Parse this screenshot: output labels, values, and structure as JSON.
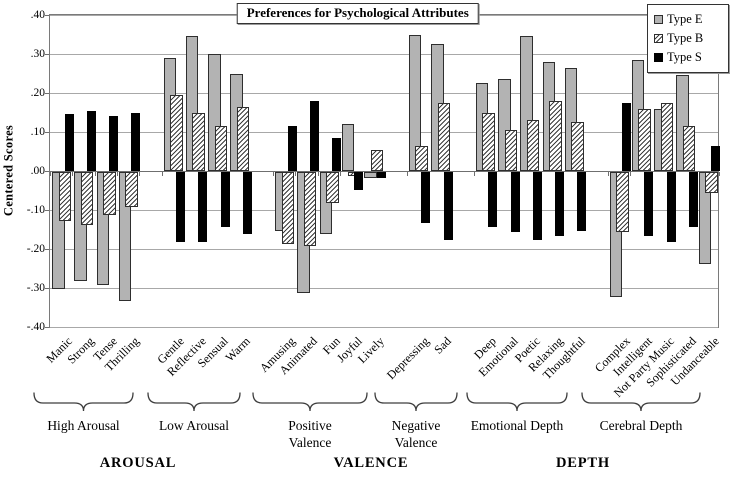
{
  "figure": {
    "background": "#ffffff",
    "colors": {
      "type_e_fill": "#b3b3b3",
      "type_b_pattern": "white with thin dark diagonal hatch",
      "type_s_fill": "#000000",
      "gridline": "#a8a8a8",
      "axis": "#6f6f6f",
      "text": "#000000"
    }
  },
  "chart_data": {
    "type": "bar",
    "title": "Preferences for Psychological Attributes",
    "xlabel": "",
    "ylabel": "Centered Scores",
    "ylim": [
      -0.4,
      0.4
    ],
    "ytick_step": 0.1,
    "ytick_labels": [
      ".40",
      ".30",
      ".20",
      ".10",
      ".00",
      "-.10",
      "-.20",
      "-.30",
      "-.40"
    ],
    "grid": true,
    "legend_position": "top-right",
    "categories": [
      "Manic",
      "Strong",
      "Tense",
      "Thrilling",
      "Gentle",
      "Reflective",
      "Sensual",
      "Warm",
      "Amusing",
      "Animated",
      "Fun",
      "Joyful",
      "Lively",
      "Depressing",
      "Sad",
      "Deep",
      "Emotional",
      "Poetic",
      "Relaxing",
      "Thoughtful",
      "Complex",
      "Intelligent",
      "Not Party Music",
      "Sophisticated",
      "Undanceable"
    ],
    "series": [
      {
        "name": "Type E",
        "pattern": "solid-gray",
        "values": [
          -0.3,
          -0.28,
          -0.29,
          -0.33,
          0.29,
          0.345,
          0.3,
          0.25,
          -0.15,
          -0.31,
          -0.16,
          0.12,
          -0.015,
          0.35,
          0.325,
          0.225,
          0.235,
          0.345,
          0.28,
          0.265,
          -0.32,
          0.285,
          0.16,
          0.245,
          -0.235
        ]
      },
      {
        "name": "Type B",
        "pattern": "diagonal-hatch",
        "values": [
          -0.125,
          -0.135,
          -0.11,
          -0.09,
          0.195,
          0.15,
          0.115,
          0.165,
          -0.185,
          -0.19,
          -0.08,
          -0.01,
          0.055,
          0.065,
          0.175,
          0.15,
          0.105,
          0.13,
          0.18,
          0.125,
          -0.155,
          0.16,
          0.175,
          0.115,
          -0.055
        ]
      },
      {
        "name": "Type S",
        "pattern": "solid-black",
        "values": [
          0.145,
          0.155,
          0.14,
          0.15,
          -0.18,
          -0.18,
          -0.14,
          -0.16,
          0.115,
          0.18,
          0.085,
          -0.045,
          -0.015,
          -0.13,
          -0.175,
          -0.14,
          -0.155,
          -0.175,
          -0.165,
          -0.15,
          0.175,
          -0.165,
          -0.18,
          -0.14,
          0.065
        ]
      }
    ],
    "groups": [
      {
        "label_lines": [
          "High Arousal"
        ],
        "category_indexes": [
          0,
          3
        ]
      },
      {
        "label_lines": [
          "Low Arousal"
        ],
        "category_indexes": [
          4,
          7
        ]
      },
      {
        "label_lines": [
          "Positive",
          "Valence"
        ],
        "category_indexes": [
          8,
          12
        ]
      },
      {
        "label_lines": [
          "Negative",
          "Valence"
        ],
        "category_indexes": [
          13,
          14
        ]
      },
      {
        "label_lines": [
          "Emotional Depth"
        ],
        "category_indexes": [
          15,
          19
        ]
      },
      {
        "label_lines": [
          "Cerebral Depth"
        ],
        "category_indexes": [
          20,
          24
        ]
      }
    ],
    "sections": [
      {
        "label": "AROUSAL"
      },
      {
        "label": "VALENCE"
      },
      {
        "label": "DEPTH"
      }
    ]
  }
}
